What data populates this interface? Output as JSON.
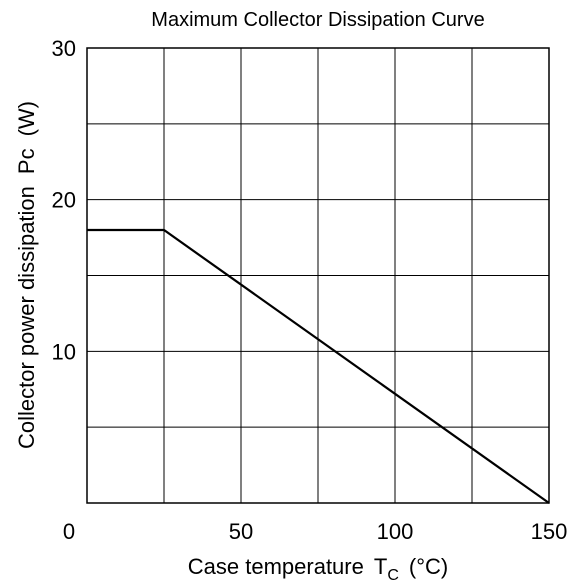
{
  "chart_data": {
    "type": "line",
    "title": "Maximum Collector Dissipation Curve",
    "xlabel": {
      "main": "Case temperature",
      "symbol": "T",
      "subscript": "C",
      "unit": "(°C)"
    },
    "ylabel": {
      "main": "Collector power dissipation",
      "symbol": "Pc",
      "unit": "(W)"
    },
    "xlim": [
      0,
      150
    ],
    "ylim": [
      0,
      30
    ],
    "x_grid": [
      0,
      25,
      50,
      75,
      100,
      125,
      150
    ],
    "y_grid": [
      0,
      5,
      10,
      15,
      20,
      25,
      30
    ],
    "x_ticks": [
      {
        "value": 0,
        "label": "0"
      },
      {
        "value": 50,
        "label": "50"
      },
      {
        "value": 100,
        "label": "100"
      },
      {
        "value": 150,
        "label": "150"
      }
    ],
    "y_ticks": [
      {
        "value": 10,
        "label": "10"
      },
      {
        "value": 20,
        "label": "20"
      },
      {
        "value": 30,
        "label": "30"
      }
    ],
    "grid": true,
    "series": [
      {
        "x": [
          0,
          25,
          150
        ],
        "y": [
          18,
          18,
          0
        ]
      }
    ],
    "colors": {
      "line": "#000000",
      "grid": "#000000",
      "background": "#ffffff"
    }
  }
}
